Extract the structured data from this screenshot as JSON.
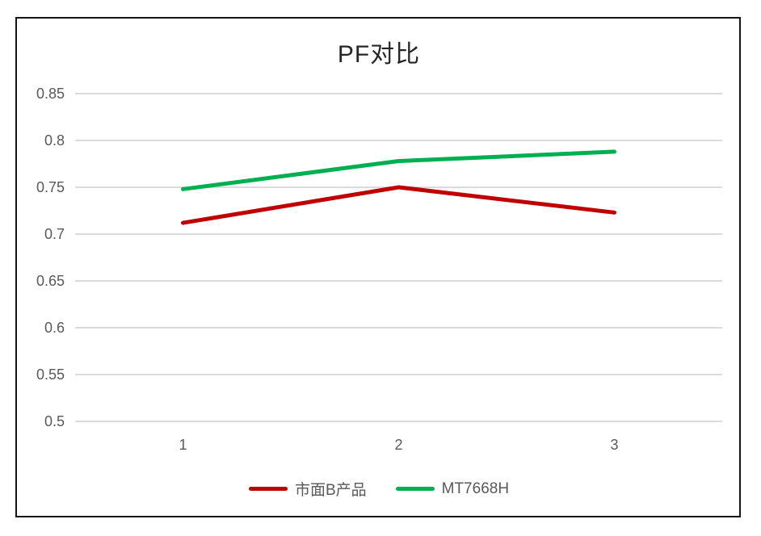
{
  "chart_data": {
    "type": "line",
    "title": "PF对比",
    "categories": [
      "1",
      "2",
      "3"
    ],
    "series": [
      {
        "name": "市面B产品",
        "color": "#C00000",
        "values": [
          0.712,
          0.75,
          0.723
        ]
      },
      {
        "name": "MT7668H",
        "color": "#00B050",
        "values": [
          0.748,
          0.778,
          0.788
        ]
      }
    ],
    "ylim": [
      0.5,
      0.85
    ],
    "ytick_step": 0.05,
    "yticks": [
      "0.85",
      "0.8",
      "0.75",
      "0.7",
      "0.65",
      "0.6",
      "0.55",
      "0.5"
    ],
    "grid": true,
    "legend_position": "bottom",
    "colors": {
      "gridline": "#DBDBDB",
      "axis_text": "#595959",
      "title_text": "#262626",
      "frame_border": "#141414",
      "background": "#FFFFFF"
    }
  }
}
